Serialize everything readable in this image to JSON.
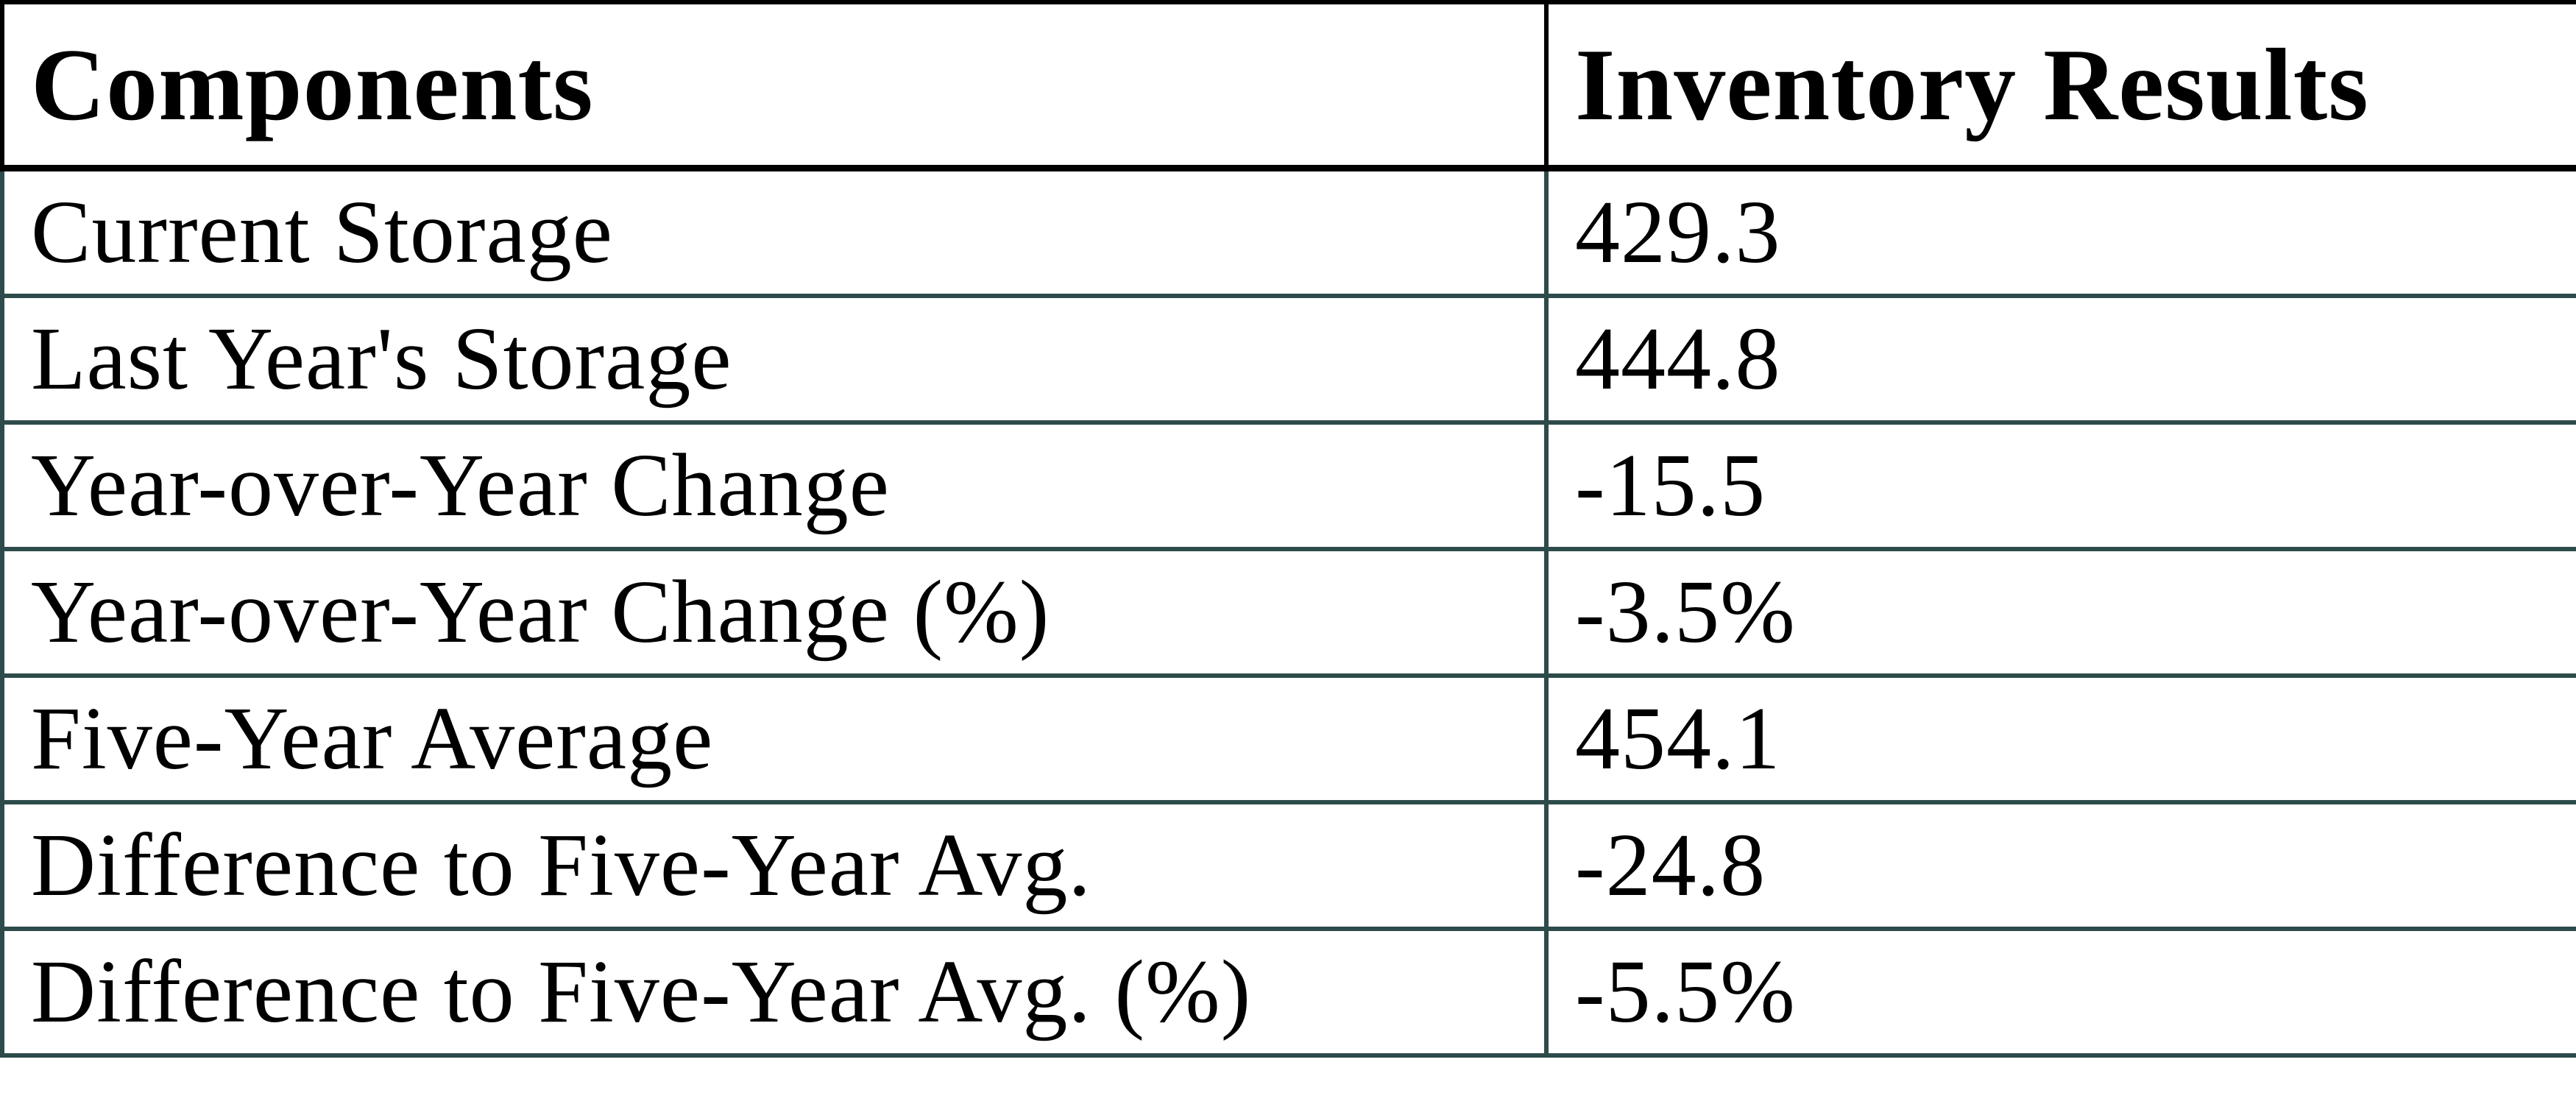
{
  "chart_data": {
    "type": "table",
    "title": "",
    "columns": [
      "Components",
      "Inventory Results"
    ],
    "rows": [
      {
        "component": "Current Storage",
        "value": "429.3"
      },
      {
        "component": "Last Year's Storage",
        "value": "444.8"
      },
      {
        "component": "Year-over-Year Change",
        "value": "-15.5"
      },
      {
        "component": "Year-over-Year Change (%)",
        "value": "-3.5%"
      },
      {
        "component": "Five-Year Average",
        "value": "454.1"
      },
      {
        "component": "Difference to Five-Year Avg.",
        "value": "-24.8"
      },
      {
        "component": "Difference to Five-Year Avg. (%)",
        "value": "-5.5%"
      }
    ],
    "layout": {
      "grid": "on",
      "header_bold": true,
      "legend": "none"
    },
    "colors": {
      "background": "#ffffff",
      "text": "#000000",
      "header_border": "#000000",
      "body_border": "#2d4b4b"
    }
  }
}
